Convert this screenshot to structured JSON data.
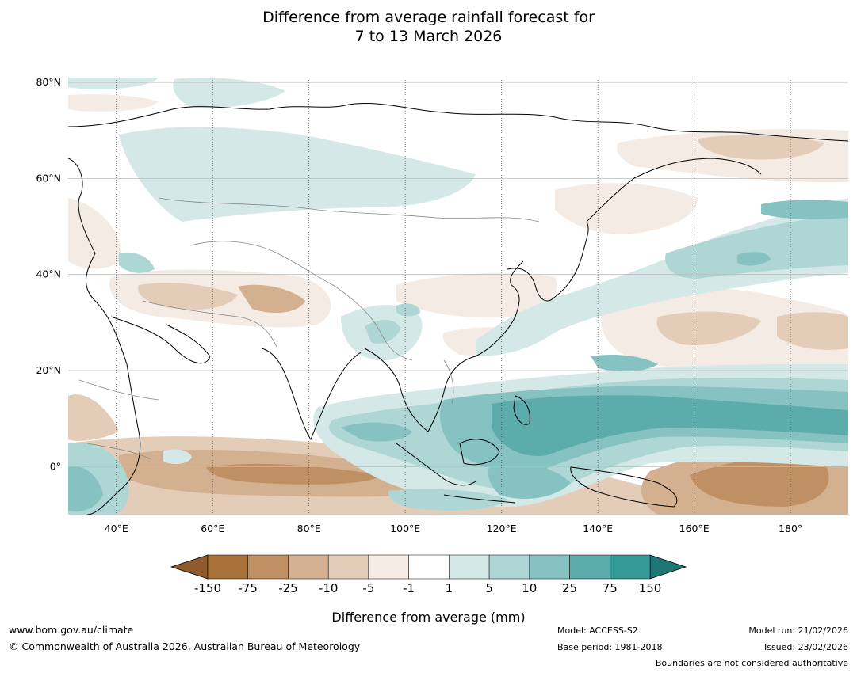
{
  "title": {
    "line1": "Difference from average rainfall forecast for",
    "line2": "7 to 13 March 2026"
  },
  "map": {
    "lat_labels": [
      "80°N",
      "60°N",
      "40°N",
      "20°N",
      "0°"
    ],
    "lat_values": [
      80,
      60,
      40,
      20,
      0
    ],
    "lon_labels": [
      "40°E",
      "60°E",
      "80°E",
      "100°E",
      "120°E",
      "140°E",
      "160°E",
      "180°"
    ],
    "lon_values": [
      40,
      60,
      80,
      100,
      120,
      140,
      160,
      180
    ],
    "lon_range": [
      30,
      192
    ],
    "lat_range": [
      -10,
      81
    ]
  },
  "colorbar": {
    "label": "Difference from average (mm)",
    "ticks": [
      "-150",
      "-75",
      "-25",
      "-10",
      "-5",
      "-1",
      "1",
      "5",
      "10",
      "25",
      "75",
      "150"
    ],
    "colors": [
      "#a8713a",
      "#c09065",
      "#d3b08f",
      "#e3cdb8",
      "#f3ebe4",
      "#ffffff",
      "#d4e8e7",
      "#aed6d5",
      "#85c2c1",
      "#5cacab",
      "#349a98"
    ],
    "under_color": "#8f5a2c",
    "over_color": "#1e7774"
  },
  "footer": {
    "website": "www.bom.gov.au/climate",
    "copyright": "© Commonwealth of Australia 2026, Australian Bureau of Meteorology",
    "model": "Model: ACCESS-S2",
    "base_period": "Base period: 1981-2018",
    "model_run": "Model run: 21/02/2026",
    "issued": "Issued: 23/02/2026",
    "disclaimer": "Boundaries are not considered authoritative"
  }
}
